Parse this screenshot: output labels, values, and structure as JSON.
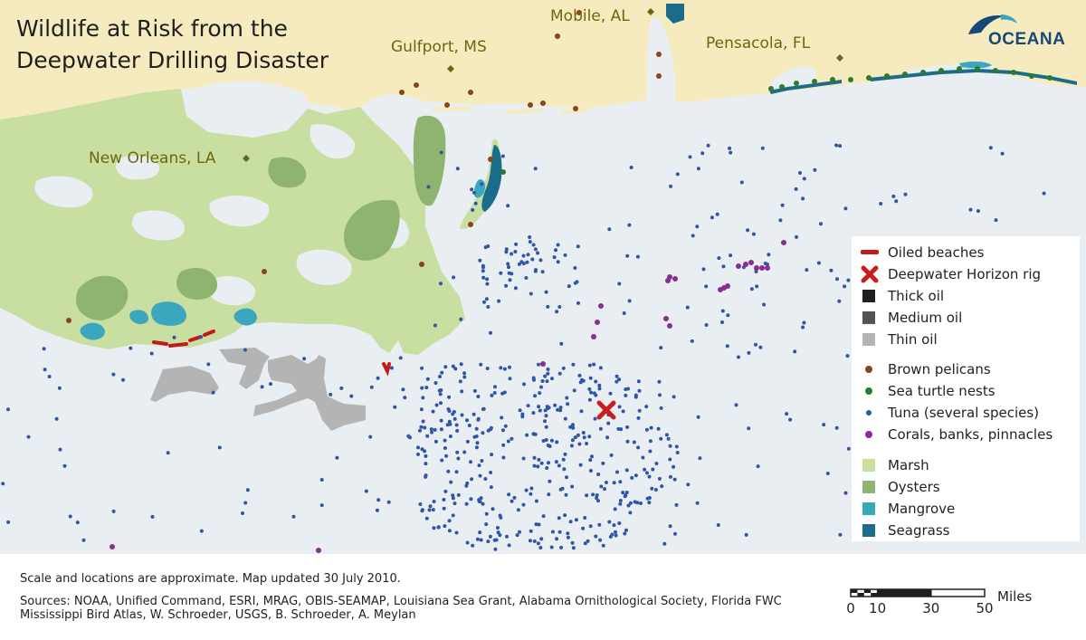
{
  "title": {
    "line1": "Wildlife at Risk from the",
    "line2": "Deepwater Drilling Disaster"
  },
  "cities": {
    "mobile": "Mobile, AL",
    "gulfport": "Gulfport, MS",
    "pensacola": "Pensacola, FL",
    "new_orleans": "New Orleans, LA"
  },
  "logo": {
    "text": "OCEANA",
    "icon": "dolphin-wave-icon"
  },
  "legend": {
    "oiled_beaches": "Oiled beaches",
    "rig": "Deepwater Horizon rig",
    "thick_oil": "Thick oil",
    "medium_oil": "Medium oil",
    "thin_oil": "Thin oil",
    "pelicans": "Brown pelicans",
    "turtles": "Sea turtle nests",
    "tuna": "Tuna (several species)",
    "corals": "Corals, banks, pinnacles",
    "marsh": "Marsh",
    "oysters": "Oysters",
    "mangrove": "Mangrove",
    "seagrass": "Seagrass"
  },
  "colors": {
    "water": "#e9eef2",
    "land": "#f6ebbf",
    "marsh": "#c9dea1",
    "oysters": "#8fb46f",
    "mangrove": "#3ba7bf",
    "seagrass": "#1b6c8a",
    "oiled_beaches": "#c21a1a",
    "rig": "#c81e1e",
    "thick_oil": "#1f1f1f",
    "medium_oil": "#5a524e",
    "thin_oil": "#b4b4b4",
    "pelicans": "#8a4418",
    "turtles": "#2c7a2c",
    "tuna": "#2e56a6",
    "corals": "#8a2c92",
    "city_text": "#6d6610",
    "logo": "#17487a"
  },
  "footer": {
    "note": "Scale and locations are approximate. Map updated 30 July  2010.",
    "sources": "Sources: NOAA, Unified Command, ESRI, MRAG, OBIS-SEAMAP, Louisiana Sea Grant, Alabama Ornithological Society, Florida FWC Mississippi Bird Atlas, W. Schroeder, USGS, B. Schroeder, A. Meylan"
  },
  "scale": {
    "unit": "Miles",
    "ticks": [
      "0",
      "10",
      "30",
      "50"
    ]
  }
}
